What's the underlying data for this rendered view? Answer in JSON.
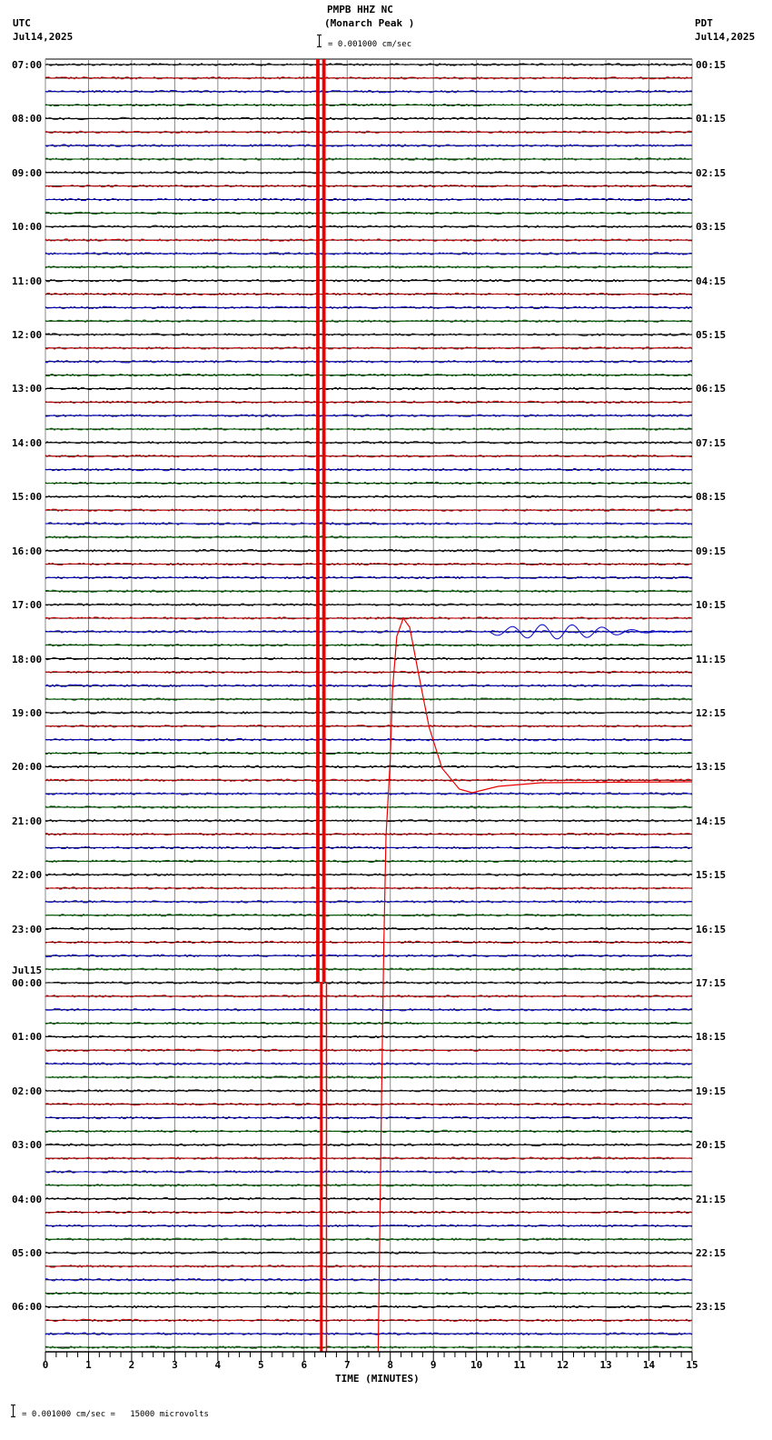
{
  "header": {
    "station": "PMPB HHZ NC",
    "location": "(Monarch Peak )",
    "left_tz": "UTC",
    "left_date": "Jul14,2025",
    "right_tz": "PDT",
    "right_date": "Jul14,2025",
    "scale_text": "= 0.001000 cm/sec"
  },
  "footer": {
    "scale_text": "= 0.001000 cm/sec =   15000 microvolts",
    "xlabel": "TIME (MINUTES)"
  },
  "chart_data": {
    "type": "line",
    "title": "PMPB HHZ NC (Monarch Peak )",
    "subtitle": "Helicorder 24h seismogram, Jul14,2025 07:00 UTC to Jul15,2025 07:00 UTC",
    "xlabel": "TIME (MINUTES)",
    "ylabel": "",
    "x_ticks": [
      "0",
      "1",
      "2",
      "3",
      "4",
      "5",
      "6",
      "7",
      "8",
      "9",
      "10",
      "11",
      "12",
      "13",
      "14",
      "15"
    ],
    "xlim": [
      0,
      15
    ],
    "grid": true,
    "traces_per_hour": 4,
    "trace_minutes": 15,
    "trace_colors": [
      "#000000",
      "#cc0000",
      "#0000cc",
      "#006600"
    ],
    "left_labels": [
      {
        "row": 0,
        "text": "07:00"
      },
      {
        "row": 4,
        "text": "08:00"
      },
      {
        "row": 8,
        "text": "09:00"
      },
      {
        "row": 12,
        "text": "10:00"
      },
      {
        "row": 16,
        "text": "11:00"
      },
      {
        "row": 20,
        "text": "12:00"
      },
      {
        "row": 24,
        "text": "13:00"
      },
      {
        "row": 28,
        "text": "14:00"
      },
      {
        "row": 32,
        "text": "15:00"
      },
      {
        "row": 36,
        "text": "16:00"
      },
      {
        "row": 40,
        "text": "17:00"
      },
      {
        "row": 44,
        "text": "18:00"
      },
      {
        "row": 48,
        "text": "19:00"
      },
      {
        "row": 52,
        "text": "20:00"
      },
      {
        "row": 56,
        "text": "21:00"
      },
      {
        "row": 60,
        "text": "22:00"
      },
      {
        "row": 64,
        "text": "23:00"
      },
      {
        "row": 68,
        "text": "00:00",
        "date": "Jul15"
      },
      {
        "row": 72,
        "text": "01:00"
      },
      {
        "row": 76,
        "text": "02:00"
      },
      {
        "row": 80,
        "text": "03:00"
      },
      {
        "row": 84,
        "text": "04:00"
      },
      {
        "row": 88,
        "text": "05:00"
      },
      {
        "row": 92,
        "text": "06:00"
      }
    ],
    "right_labels": [
      {
        "row": 0,
        "text": "00:15"
      },
      {
        "row": 4,
        "text": "01:15"
      },
      {
        "row": 8,
        "text": "02:15"
      },
      {
        "row": 12,
        "text": "03:15"
      },
      {
        "row": 16,
        "text": "04:15"
      },
      {
        "row": 20,
        "text": "05:15"
      },
      {
        "row": 24,
        "text": "06:15"
      },
      {
        "row": 28,
        "text": "07:15"
      },
      {
        "row": 32,
        "text": "08:15"
      },
      {
        "row": 36,
        "text": "09:15"
      },
      {
        "row": 40,
        "text": "10:15"
      },
      {
        "row": 44,
        "text": "11:15"
      },
      {
        "row": 48,
        "text": "12:15"
      },
      {
        "row": 52,
        "text": "13:15"
      },
      {
        "row": 56,
        "text": "14:15"
      },
      {
        "row": 60,
        "text": "15:15"
      },
      {
        "row": 64,
        "text": "16:15"
      },
      {
        "row": 68,
        "text": "17:15"
      },
      {
        "row": 72,
        "text": "18:15"
      },
      {
        "row": 76,
        "text": "19:15"
      },
      {
        "row": 80,
        "text": "20:15"
      },
      {
        "row": 84,
        "text": "21:15"
      },
      {
        "row": 88,
        "text": "22:15"
      },
      {
        "row": 92,
        "text": "23:15"
      }
    ],
    "annotations": [
      {
        "type": "clipped_burst",
        "x_min": [
          6.3,
          6.5
        ],
        "rows": [
          0,
          95
        ],
        "color": "#ff0000"
      },
      {
        "type": "long_period_pulse",
        "row_start": 53,
        "x_start": 8.0,
        "peak_row": 41,
        "peak_x": 8.4,
        "trough_x": 9.8,
        "color": "#ff0000"
      },
      {
        "type": "surface_waves",
        "row": 42,
        "x_range": [
          10.3,
          14.8
        ],
        "color": "#0000cc"
      }
    ]
  }
}
